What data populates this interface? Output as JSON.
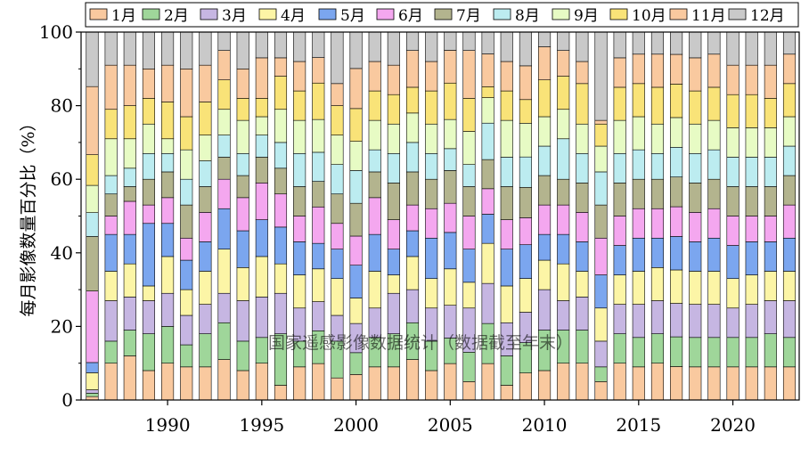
{
  "chart_data": {
    "type": "bar",
    "stacked": true,
    "percent": true,
    "title": "",
    "xlabel": "",
    "ylabel": "每月影像数量百分比（%）",
    "ylim": [
      0,
      100
    ],
    "yticks": [
      0,
      20,
      40,
      60,
      80,
      100
    ],
    "xticks": [
      1990,
      1995,
      2000,
      2005,
      2010,
      2015,
      2020
    ],
    "legend_position": "top",
    "watermark": "国家遥感影像数据统计（数据截至年末）",
    "categories": [
      1986,
      1987,
      1988,
      1989,
      1990,
      1991,
      1992,
      1993,
      1994,
      1995,
      1996,
      1997,
      1998,
      1999,
      2000,
      2001,
      2002,
      2003,
      2004,
      2005,
      2006,
      2007,
      2008,
      2009,
      2010,
      2011,
      2012,
      2013,
      2014,
      2015,
      2016,
      2017,
      2018,
      2019,
      2020,
      2021,
      2022,
      2023
    ],
    "series": [
      {
        "name": "1月",
        "color": "#f9c99f",
        "values": [
          1,
          10,
          12,
          8,
          10,
          9,
          9,
          11,
          8,
          10,
          4,
          9,
          10,
          6,
          7,
          9,
          9,
          11,
          8,
          10,
          5,
          10,
          4,
          8,
          8,
          10,
          10,
          5,
          10,
          9,
          10,
          9,
          9,
          9,
          9,
          9,
          9,
          9
        ]
      },
      {
        "name": "2月",
        "color": "#9fd69a",
        "values": [
          1,
          6,
          7,
          10,
          10,
          6,
          9,
          10,
          8,
          7,
          14,
          7,
          9,
          10,
          6,
          8,
          9,
          10,
          8,
          7,
          8,
          11,
          8,
          9,
          11,
          9,
          9,
          4,
          8,
          8,
          8,
          8,
          8,
          8,
          8,
          8,
          9,
          8
        ]
      },
      {
        "name": "3月",
        "color": "#c6b6e2",
        "values": [
          1,
          11,
          9,
          9,
          9,
          8,
          8,
          8,
          11,
          11,
          11,
          9,
          8,
          7,
          8,
          8,
          11,
          9,
          9,
          9,
          12,
          11,
          9,
          9,
          11,
          8,
          9,
          7,
          8,
          9,
          9,
          9,
          9,
          9,
          8,
          9,
          9,
          10
        ]
      },
      {
        "name": "4月",
        "color": "#fcf5a6",
        "values": [
          5,
          8,
          9,
          4,
          10,
          7,
          9,
          12,
          9,
          11,
          8,
          9,
          9,
          10,
          7,
          10,
          5,
          9,
          8,
          10,
          7,
          11,
          10,
          10,
          8,
          10,
          7,
          9,
          8,
          9,
          9,
          9,
          9,
          9,
          8,
          8,
          8,
          8
        ]
      },
      {
        "name": "5月",
        "color": "#7ba6ef",
        "values": [
          3,
          10,
          8,
          17,
          9,
          8,
          8,
          11,
          10,
          10,
          10,
          9,
          7,
          8,
          9,
          10,
          7,
          7,
          11,
          10,
          9,
          8,
          10,
          10,
          7,
          8,
          8,
          9,
          8,
          9,
          8,
          9,
          8,
          9,
          9,
          9,
          8,
          9
        ]
      },
      {
        "name": "6月",
        "color": "#f4a7ef",
        "values": [
          21,
          5,
          9,
          5,
          7,
          6,
          8,
          8,
          9,
          10,
          9,
          7,
          10,
          7,
          8,
          10,
          8,
          7,
          8,
          8,
          9,
          7,
          8,
          8,
          8,
          8,
          8,
          10,
          8,
          8,
          8,
          8,
          8,
          8,
          8,
          7,
          7,
          9
        ]
      },
      {
        "name": "7月",
        "color": "#b3b48e",
        "values": [
          16,
          6,
          4,
          7,
          7,
          9,
          7,
          6,
          6,
          7,
          7,
          8,
          7,
          8,
          9,
          7,
          10,
          9,
          8,
          9,
          8,
          8,
          9,
          9,
          8,
          7,
          8,
          9,
          9,
          8,
          8,
          8,
          8,
          8,
          8,
          8,
          8,
          8
        ]
      },
      {
        "name": "8月",
        "color": "#bcecf0",
        "values": [
          7,
          5,
          5,
          7,
          5,
          7,
          7,
          6,
          6,
          6,
          7,
          9,
          8,
          8,
          9,
          6,
          8,
          8,
          7,
          6,
          6,
          10,
          8,
          9,
          8,
          11,
          8,
          9,
          8,
          8,
          7,
          8,
          8,
          8,
          8,
          8,
          8,
          8
        ]
      },
      {
        "name": "9月",
        "color": "#e7fbc4",
        "values": [
          8,
          10,
          8,
          8,
          4,
          8,
          7,
          7,
          9,
          5,
          9,
          9,
          9,
          8,
          8,
          8,
          8,
          8,
          8,
          8,
          9,
          7,
          10,
          10,
          8,
          8,
          8,
          7,
          9,
          9,
          8,
          8,
          8,
          8,
          8,
          8,
          8,
          8
        ]
      },
      {
        "name": "10月",
        "color": "#f9e378",
        "values": [
          9,
          8,
          9,
          7,
          10,
          9,
          9,
          8,
          6,
          5,
          9,
          8,
          10,
          8,
          9,
          8,
          8,
          7,
          9,
          10,
          9,
          3,
          8,
          7,
          10,
          9,
          11,
          6,
          9,
          9,
          10,
          9,
          9,
          9,
          9,
          9,
          8,
          9
        ]
      },
      {
        "name": "11月",
        "color": "#f9c99f",
        "values": [
          20,
          12,
          11,
          8,
          10,
          13,
          10,
          8,
          8,
          11,
          5,
          8,
          7,
          6,
          11,
          8,
          8,
          10,
          8,
          9,
          13,
          9,
          8,
          10,
          9,
          7,
          6,
          1,
          8,
          8,
          9,
          8,
          9,
          9,
          8,
          8,
          9,
          8
        ]
      },
      {
        "name": "12月",
        "color": "#c9c9c9",
        "values": [
          16,
          9,
          9,
          10,
          9,
          10,
          9,
          5,
          10,
          7,
          7,
          8,
          7,
          14,
          10,
          8,
          9,
          5,
          8,
          5,
          5,
          6,
          8,
          10,
          4,
          5,
          8,
          24,
          7,
          6,
          6,
          6,
          7,
          6,
          9,
          9,
          9,
          6
        ]
      }
    ]
  }
}
